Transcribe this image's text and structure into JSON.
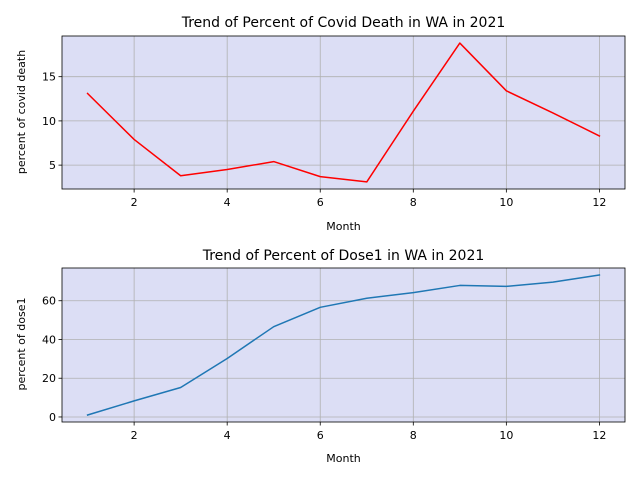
{
  "chart_data": [
    {
      "type": "line",
      "title": "Trend of Percent of Covid Death in WA in 2021",
      "xlabel": "Month",
      "ylabel": "percent of covid death",
      "x": [
        1,
        2,
        3,
        4,
        5,
        6,
        7,
        8,
        9,
        10,
        11,
        12
      ],
      "series": [
        {
          "values": [
            13.1,
            7.9,
            3.8,
            4.5,
            5.4,
            3.7,
            3.1,
            11.1,
            18.8,
            13.4,
            10.9,
            8.3
          ],
          "color": "#ff0000"
        }
      ],
      "xlim": [
        0.45,
        12.55
      ],
      "ylim": [
        2.3,
        19.6
      ],
      "xticks": [
        2,
        4,
        6,
        8,
        10,
        12
      ],
      "yticks": [
        5,
        10,
        15
      ],
      "grid": true,
      "background": "#dcdef5"
    },
    {
      "type": "line",
      "title": "Trend of Percent of Dose1 in WA in 2021",
      "xlabel": "Month",
      "ylabel": "percent of dose1",
      "x": [
        1,
        2,
        3,
        4,
        5,
        6,
        7,
        8,
        9,
        10,
        11,
        12
      ],
      "series": [
        {
          "values": [
            1.0,
            8.3,
            15.2,
            30.2,
            46.6,
            56.6,
            61.3,
            64.2,
            67.9,
            67.4,
            69.6,
            73.3
          ],
          "color": "#1f77b4"
        }
      ],
      "xlim": [
        0.45,
        12.55
      ],
      "ylim": [
        -2.6,
        76.9
      ],
      "xticks": [
        2,
        4,
        6,
        8,
        10,
        12
      ],
      "yticks": [
        0,
        20,
        40,
        60
      ],
      "grid": true,
      "background": "#dcdef5"
    }
  ]
}
